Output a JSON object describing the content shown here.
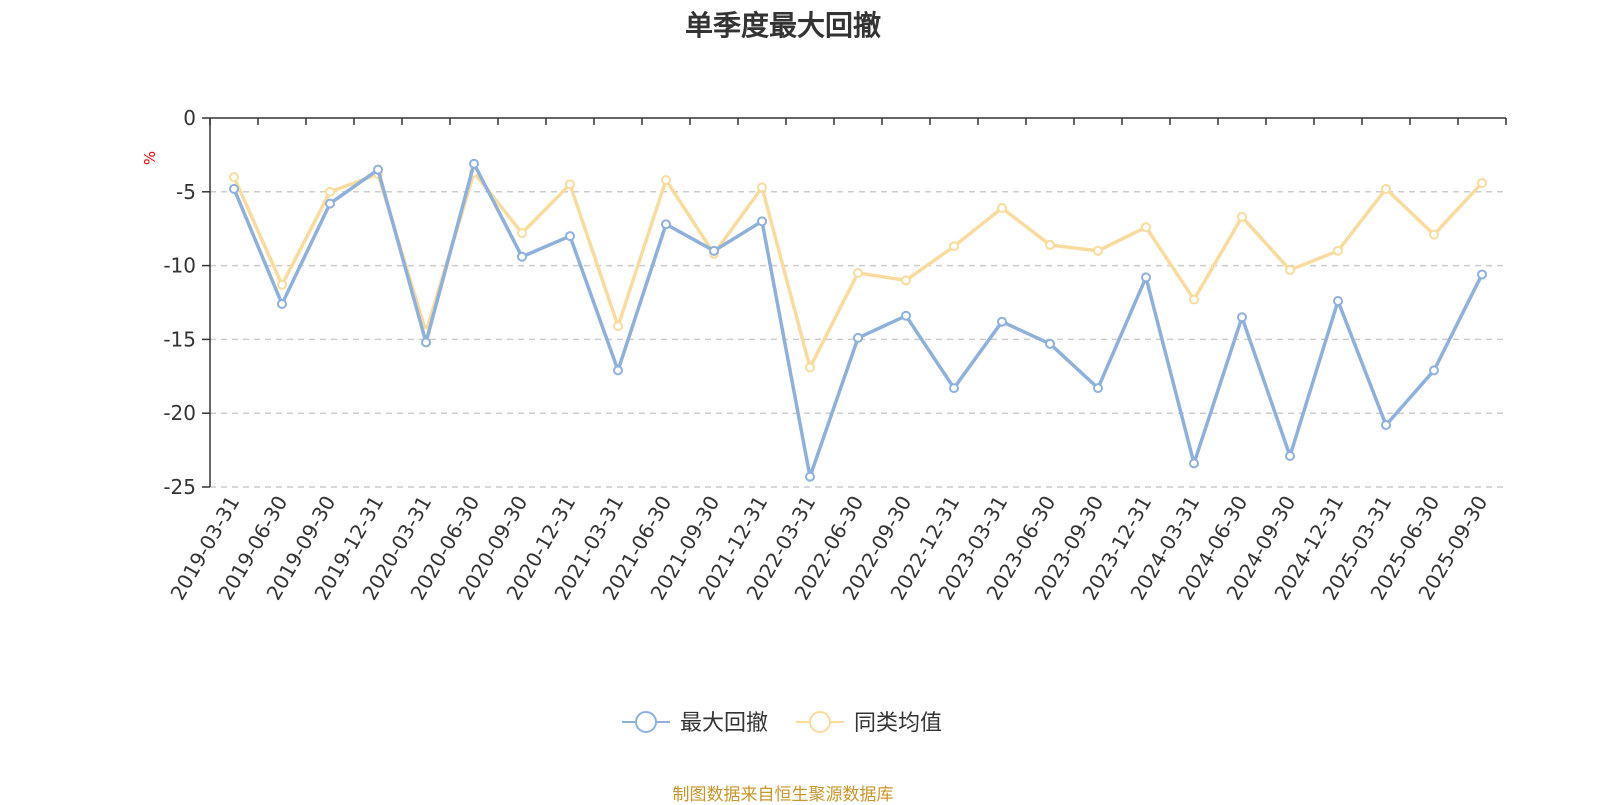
{
  "chart_data": {
    "type": "line",
    "title": "单季度最大回撤",
    "ylabel": "%",
    "ylim": [
      -25,
      0
    ],
    "yticks": [
      0,
      -5,
      -10,
      -15,
      -20,
      -25
    ],
    "grid": true,
    "legend_position": "bottom",
    "x": [
      "2019-03-31",
      "2019-06-30",
      "2019-09-30",
      "2019-12-31",
      "2020-03-31",
      "2020-06-30",
      "2020-09-30",
      "2020-12-31",
      "2021-03-31",
      "2021-06-30",
      "2021-09-30",
      "2021-12-31",
      "2022-03-31",
      "2022-06-30",
      "2022-09-30",
      "2022-12-31",
      "2023-03-31",
      "2023-06-30",
      "2023-09-30",
      "2023-12-31",
      "2024-03-31",
      "2024-06-30",
      "2024-09-30",
      "2024-12-31",
      "2025-03-31",
      "2025-06-30",
      "2025-09-30"
    ],
    "series": [
      {
        "name": "最大回撤",
        "color": "#8eb0dc",
        "values": [
          -4.8,
          -12.6,
          -5.8,
          -3.5,
          -15.2,
          -3.1,
          -9.4,
          -8.0,
          -17.1,
          -7.2,
          -9.0,
          -7.0,
          -24.3,
          -14.9,
          -13.4,
          -18.3,
          -13.8,
          -15.3,
          -18.3,
          -10.8,
          -23.4,
          -13.5,
          -22.9,
          -12.4,
          -20.8,
          -17.1,
          -10.6
        ]
      },
      {
        "name": "同类均值",
        "color": "#f9dc9d",
        "values": [
          -4.0,
          -11.3,
          -5.0,
          -3.8,
          -14.5,
          -3.7,
          -7.8,
          -4.5,
          -14.1,
          -4.2,
          -9.2,
          -4.7,
          -16.9,
          -10.5,
          -11.0,
          -8.7,
          -6.1,
          -8.6,
          -9.0,
          -7.4,
          -12.3,
          -6.7,
          -10.3,
          -9.0,
          -4.8,
          -7.9,
          -4.4
        ]
      }
    ]
  },
  "source_note": "制图数据来自恒生聚源数据库"
}
